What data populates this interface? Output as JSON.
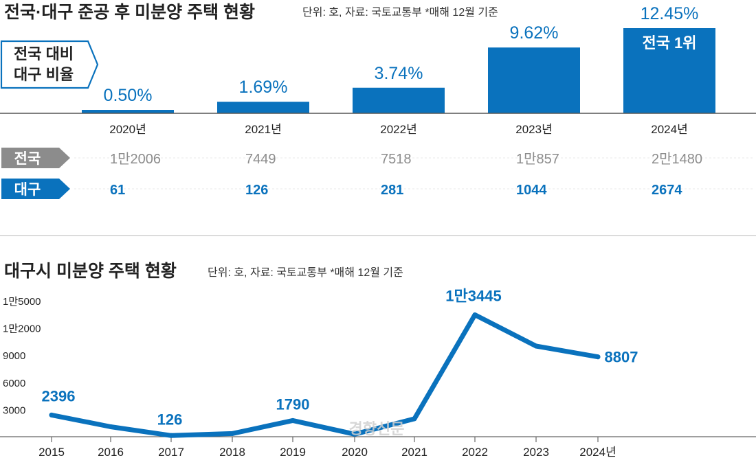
{
  "chart_data": [
    {
      "type": "bar",
      "title": "전국·대구 준공 후 미분양 주택 현황",
      "subtitle": "단위: 호, 자료: 국토교통부  *매해 12월 기준",
      "label_box": [
        "전국 대비",
        "대구 비율"
      ],
      "categories": [
        "2020년",
        "2021년",
        "2022년",
        "2023년",
        "2024년"
      ],
      "values": [
        0.5,
        1.69,
        3.74,
        9.62,
        12.45
      ],
      "value_labels": [
        "0.50%",
        "1.69%",
        "3.74%",
        "9.62%",
        "12.45%"
      ],
      "annotation": "전국 1위",
      "ylim": [
        0,
        12.45
      ],
      "table": {
        "rows": [
          {
            "name": "전국",
            "values": [
              "1만2006",
              "7449",
              "7518",
              "1만857",
              "2만1480"
            ]
          },
          {
            "name": "대구",
            "values": [
              "61",
              "126",
              "281",
              "1044",
              "2674"
            ]
          }
        ]
      }
    },
    {
      "type": "line",
      "title": "대구시 미분양 주택 현황",
      "subtitle": "단위: 호, 자료: 국토교통부  *매해 12월 기준",
      "x": [
        "2015",
        "2016",
        "2017",
        "2018",
        "2019",
        "2020",
        "2021",
        "2022",
        "2023",
        "2024년"
      ],
      "values": [
        2396,
        1100,
        126,
        350,
        1790,
        280,
        1977,
        13445,
        10000,
        8807
      ],
      "point_labels": {
        "0": "2396",
        "2": "126",
        "4": "1790",
        "7": "1만3445",
        "9": "8807"
      },
      "ytick_labels": [
        "3000",
        "6000",
        "9000",
        "1만2000",
        "1만5000"
      ],
      "ytick_values": [
        3000,
        6000,
        9000,
        12000,
        15000
      ],
      "ylim": [
        0,
        15000
      ]
    }
  ],
  "colors": {
    "accent": "#0a72bd",
    "row_grey": "#8c8c8c",
    "light_line": "#e8e8e8"
  },
  "watermark": "경향신문"
}
